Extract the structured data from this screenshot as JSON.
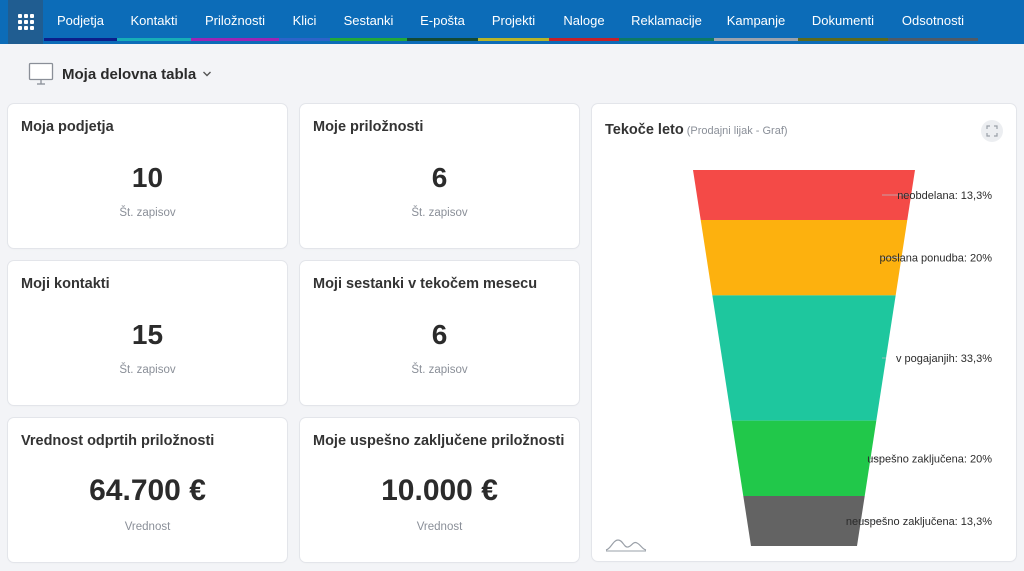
{
  "nav": {
    "items": [
      {
        "label": "Podjetja",
        "color": "#0b1f8a"
      },
      {
        "label": "Kontakti",
        "color": "#16aeb8"
      },
      {
        "label": "Priložnosti",
        "color": "#9c24b5"
      },
      {
        "label": "Klici",
        "color": "#2e63c9"
      },
      {
        "label": "Sestanki",
        "color": "#22a83a"
      },
      {
        "label": "E-pošta",
        "color": "#124a35"
      },
      {
        "label": "Projekti",
        "color": "#b7b52a"
      },
      {
        "label": "Naloge",
        "color": "#c4202a"
      },
      {
        "label": "Reklamacije",
        "color": "#0d7a64"
      },
      {
        "label": "Kampanje",
        "color": "#9aa2ad"
      },
      {
        "label": "Dokumenti",
        "color": "#5d6a1c"
      },
      {
        "label": "Odsotnosti",
        "color": "#505a66"
      }
    ]
  },
  "dashboard": {
    "title": "Moja delovna tabla"
  },
  "cards": [
    {
      "title": "Moja podjetja",
      "value": "10",
      "sub": "Št. zapisov"
    },
    {
      "title": "Moje priložnosti",
      "value": "6",
      "sub": "Št. zapisov"
    },
    {
      "title": "Moji kontakti",
      "value": "15",
      "sub": "Št. zapisov"
    },
    {
      "title": "Moji sestanki v tekočem mesecu",
      "value": "6",
      "sub": "Št. zapisov"
    },
    {
      "title": "Vrednost odprtih priložnosti",
      "value": "64.700 €",
      "sub": "Vrednost"
    },
    {
      "title": "Moje uspešno zaključene priložnosti",
      "value": "10.000 €",
      "sub": "Vrednost"
    }
  ],
  "funnel": {
    "title": "Tekoče leto",
    "subtitle": "(Prodajni lijak - Graf)"
  },
  "chart_data": {
    "type": "funnel",
    "title": "Tekoče leto",
    "subtitle": "(Prodajni lijak - Graf)",
    "stages": [
      {
        "label": "neobdelana: 13,3%",
        "value": 13.3,
        "color": "#f44a47"
      },
      {
        "label": "poslana ponudba: 20%",
        "value": 20,
        "color": "#fdb10e"
      },
      {
        "label": "v pogajanjih: 33,3%",
        "value": 33.3,
        "color": "#1ec79e"
      },
      {
        "label": "uspešno zaključena: 20%",
        "value": 20,
        "color": "#21c84a"
      },
      {
        "label": "neuspešno zaključena: 13,3%",
        "value": 13.3,
        "color": "#636363"
      }
    ]
  }
}
